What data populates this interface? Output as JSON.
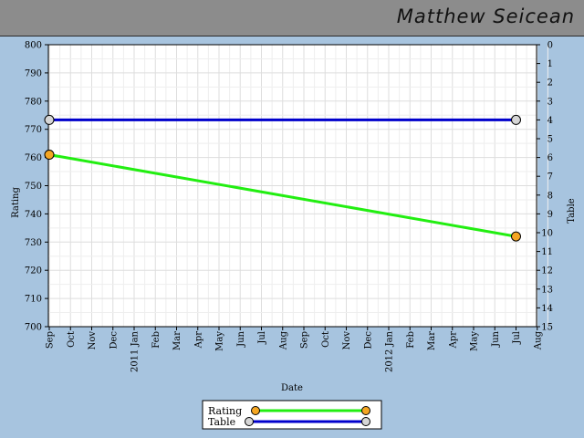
{
  "header": {
    "player_name": "Matthew Seicean"
  },
  "chart_data": {
    "type": "line",
    "title": "",
    "xlabel": "Date",
    "ylabel": "Rating",
    "y2label": "Table",
    "ylim": [
      700,
      800
    ],
    "y2lim": [
      0,
      15
    ],
    "y2_inverted": true,
    "grid": true,
    "legend_position": "bottom-center",
    "x_ticks": [
      "Sep",
      "Oct",
      "Nov",
      "Dec",
      "2011 Jan",
      "Feb",
      "Mar",
      "Apr",
      "May",
      "Jun",
      "Jul",
      "Aug",
      "Sep",
      "Oct",
      "Nov",
      "Dec",
      "2012 Jan",
      "Feb",
      "Mar",
      "Apr",
      "May",
      "Jun",
      "Jul",
      "Aug"
    ],
    "y_ticks": [
      700,
      710,
      720,
      730,
      740,
      750,
      760,
      770,
      780,
      790,
      800
    ],
    "y2_ticks": [
      0,
      1,
      2,
      3,
      4,
      5,
      6,
      7,
      8,
      9,
      10,
      11,
      12,
      13,
      14,
      15
    ],
    "series": [
      {
        "name": "Rating",
        "axis": "left",
        "color": "#22ee11",
        "marker_color": "#f5a623",
        "x": [
          "2010-09",
          "2012-07"
        ],
        "values": [
          761,
          732
        ]
      },
      {
        "name": "Table",
        "axis": "right",
        "color": "#0000cc",
        "marker_color": "#d6d6d6",
        "x": [
          "2010-09",
          "2012-07"
        ],
        "values": [
          4,
          4
        ]
      }
    ]
  }
}
